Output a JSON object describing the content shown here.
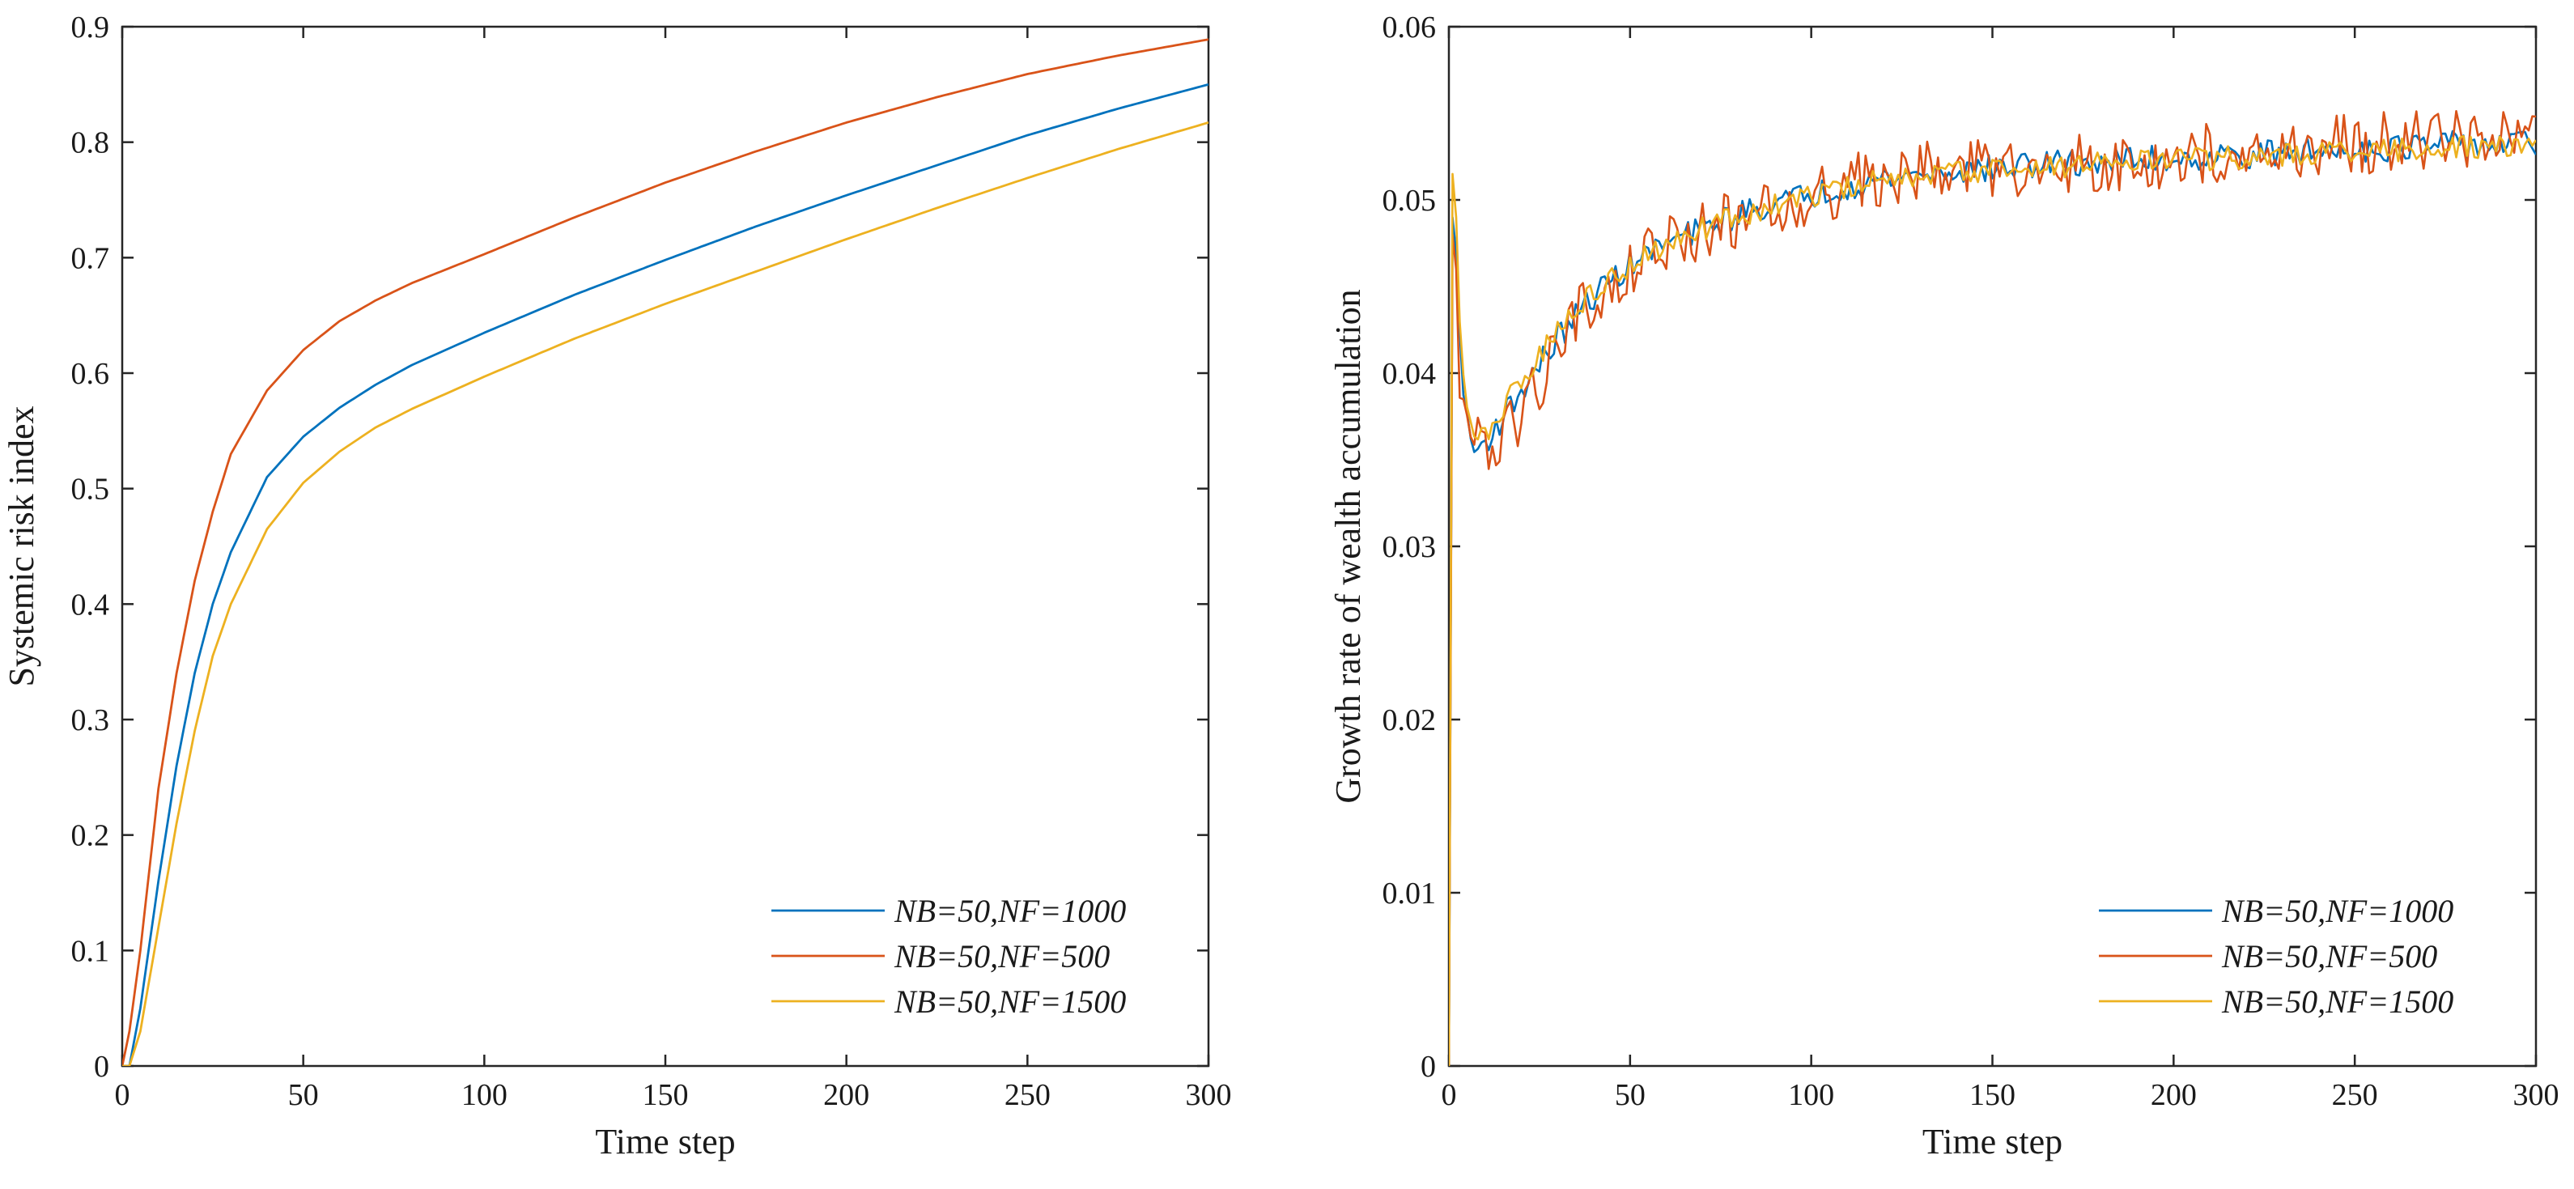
{
  "charts": [
    {
      "type": "line",
      "title": "",
      "xlabel": "Time step",
      "ylabel": "Systemic risk index",
      "xlim": [
        0,
        300
      ],
      "ylim": [
        0,
        0.9
      ],
      "xticks": [
        0,
        50,
        100,
        150,
        200,
        250,
        300
      ],
      "xtick_labels": [
        "0",
        "50",
        "100",
        "150",
        "200",
        "250",
        "300"
      ],
      "yticks": [
        0,
        0.1,
        0.2,
        0.3,
        0.4,
        0.5,
        0.6,
        0.7,
        0.8,
        0.9
      ],
      "ytick_labels": [
        "0",
        "0.1",
        "0.2",
        "0.3",
        "0.4",
        "0.5",
        "0.6",
        "0.7",
        "0.8",
        "0.9"
      ],
      "legend_position": "bottom-right",
      "series": [
        {
          "name": "NB=50,NF=1000",
          "color": "#0072BD",
          "x": [
            0,
            2,
            5,
            10,
            15,
            20,
            25,
            30,
            40,
            50,
            60,
            70,
            80,
            100,
            125,
            150,
            175,
            200,
            225,
            250,
            275,
            300
          ],
          "y": [
            0,
            0.0,
            0.05,
            0.16,
            0.26,
            0.34,
            0.4,
            0.445,
            0.51,
            0.545,
            0.57,
            0.59,
            0.607,
            0.635,
            0.668,
            0.698,
            0.727,
            0.754,
            0.78,
            0.806,
            0.829,
            0.85
          ]
        },
        {
          "name": "NB=50,NF=500",
          "color": "#D95319",
          "x": [
            0,
            2,
            5,
            10,
            15,
            20,
            25,
            30,
            40,
            50,
            60,
            70,
            80,
            100,
            125,
            150,
            175,
            200,
            225,
            250,
            275,
            300
          ],
          "y": [
            0,
            0.03,
            0.1,
            0.24,
            0.34,
            0.42,
            0.48,
            0.53,
            0.585,
            0.62,
            0.645,
            0.663,
            0.678,
            0.703,
            0.735,
            0.765,
            0.792,
            0.817,
            0.839,
            0.859,
            0.875,
            0.889
          ]
        },
        {
          "name": "NB=50,NF=1500",
          "color": "#EDB120",
          "x": [
            0,
            2,
            5,
            10,
            15,
            20,
            25,
            30,
            40,
            50,
            60,
            70,
            80,
            100,
            125,
            150,
            175,
            200,
            225,
            250,
            275,
            300
          ],
          "y": [
            0,
            0.0,
            0.03,
            0.12,
            0.21,
            0.29,
            0.355,
            0.4,
            0.465,
            0.505,
            0.532,
            0.553,
            0.569,
            0.597,
            0.63,
            0.66,
            0.688,
            0.716,
            0.743,
            0.769,
            0.794,
            0.817
          ]
        }
      ]
    },
    {
      "type": "line",
      "title": "",
      "xlabel": "Time step",
      "ylabel": "Growth rate of wealth accumulation",
      "xlim": [
        0,
        300
      ],
      "ylim": [
        0,
        0.06
      ],
      "xticks": [
        0,
        50,
        100,
        150,
        200,
        250,
        300
      ],
      "xtick_labels": [
        "0",
        "50",
        "100",
        "150",
        "200",
        "250",
        "300"
      ],
      "yticks": [
        0,
        0.01,
        0.02,
        0.03,
        0.04,
        0.05,
        0.06
      ],
      "ytick_labels": [
        "0",
        "0.01",
        "0.02",
        "0.03",
        "0.04",
        "0.05",
        "0.06"
      ],
      "legend_position": "bottom-right",
      "series": [
        {
          "name": "NB=50,NF=1000",
          "color": "#0072BD",
          "x": [
            0,
            1,
            2,
            3,
            5,
            7,
            10,
            15,
            20,
            25,
            30,
            40,
            50,
            60,
            70,
            80,
            90,
            100,
            110,
            120,
            130,
            140,
            150,
            160,
            170,
            180,
            190,
            200,
            210,
            220,
            230,
            240,
            250,
            260,
            270,
            280,
            290,
            300
          ],
          "y": [
            0,
            0.049,
            0.047,
            0.042,
            0.037,
            0.0355,
            0.036,
            0.0375,
            0.039,
            0.0405,
            0.042,
            0.0445,
            0.0463,
            0.0475,
            0.0483,
            0.0492,
            0.0498,
            0.0503,
            0.0508,
            0.0512,
            0.0515,
            0.0517,
            0.0518,
            0.052,
            0.0521,
            0.0522,
            0.0523,
            0.0524,
            0.0525,
            0.0526,
            0.0527,
            0.0528,
            0.053,
            0.053,
            0.0531,
            0.0532,
            0.0532,
            0.0533
          ],
          "noise": 0.0008
        },
        {
          "name": "NB=50,NF=500",
          "color": "#D95319",
          "x": [
            0,
            1,
            2,
            3,
            5,
            7,
            10,
            15,
            20,
            25,
            30,
            40,
            50,
            60,
            70,
            80,
            90,
            100,
            110,
            120,
            130,
            140,
            150,
            160,
            170,
            180,
            190,
            200,
            210,
            220,
            230,
            240,
            250,
            260,
            270,
            280,
            290,
            300
          ],
          "y": [
            0,
            0.048,
            0.046,
            0.04,
            0.036,
            0.0355,
            0.036,
            0.0365,
            0.0375,
            0.0395,
            0.042,
            0.0445,
            0.046,
            0.0472,
            0.0482,
            0.049,
            0.0497,
            0.0503,
            0.0508,
            0.0513,
            0.0516,
            0.0518,
            0.052,
            0.052,
            0.0521,
            0.0522,
            0.0523,
            0.0525,
            0.0526,
            0.0527,
            0.0528,
            0.053,
            0.0532,
            0.0533,
            0.0534,
            0.0534,
            0.0533,
            0.0532
          ],
          "noise": 0.0018
        },
        {
          "name": "NB=50,NF=1500",
          "color": "#EDB120",
          "x": [
            0,
            1,
            2,
            3,
            5,
            7,
            10,
            15,
            20,
            25,
            30,
            40,
            50,
            60,
            70,
            80,
            90,
            100,
            110,
            120,
            130,
            140,
            150,
            160,
            170,
            180,
            190,
            200,
            210,
            220,
            230,
            240,
            250,
            260,
            270,
            280,
            290,
            300
          ],
          "y": [
            0,
            0.0515,
            0.049,
            0.043,
            0.0375,
            0.036,
            0.0365,
            0.038,
            0.0395,
            0.041,
            0.0425,
            0.0447,
            0.0463,
            0.0474,
            0.0483,
            0.0491,
            0.0497,
            0.0502,
            0.0507,
            0.0511,
            0.0514,
            0.0516,
            0.0518,
            0.0519,
            0.052,
            0.0521,
            0.0522,
            0.0523,
            0.0524,
            0.0525,
            0.0526,
            0.0527,
            0.0528,
            0.0529,
            0.053,
            0.053,
            0.053,
            0.053
          ],
          "noise": 0.0007
        }
      ]
    }
  ]
}
